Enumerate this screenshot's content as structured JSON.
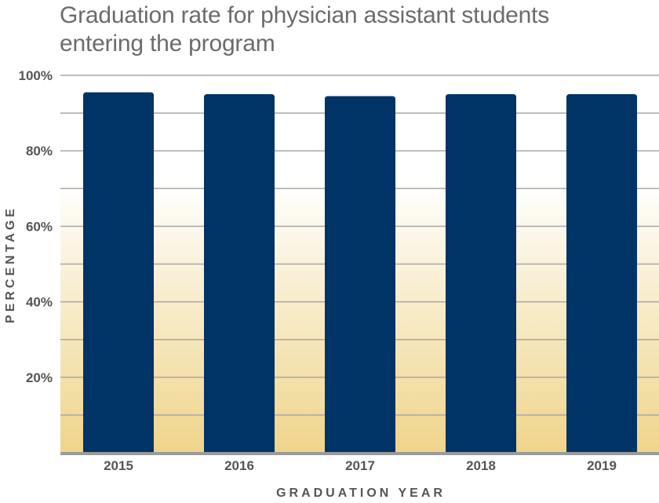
{
  "chart_data": {
    "type": "bar",
    "title": "Graduation rate for physician assistant students entering the program",
    "xlabel": "GRADUATION YEAR",
    "ylabel": "PERCENTAGE",
    "categories": [
      "2015",
      "2016",
      "2017",
      "2018",
      "2019"
    ],
    "values": [
      95.5,
      95,
      94.5,
      95,
      95
    ],
    "ylim": [
      0,
      100
    ],
    "y_ticks": [
      20,
      40,
      60,
      80,
      100
    ],
    "y_tick_labels": [
      "20%",
      "40%",
      "60%",
      "80%",
      "100%"
    ],
    "grid": true,
    "bar_color": "#003366",
    "background_gradient": [
      "#ffffff",
      "#efd48a"
    ]
  }
}
